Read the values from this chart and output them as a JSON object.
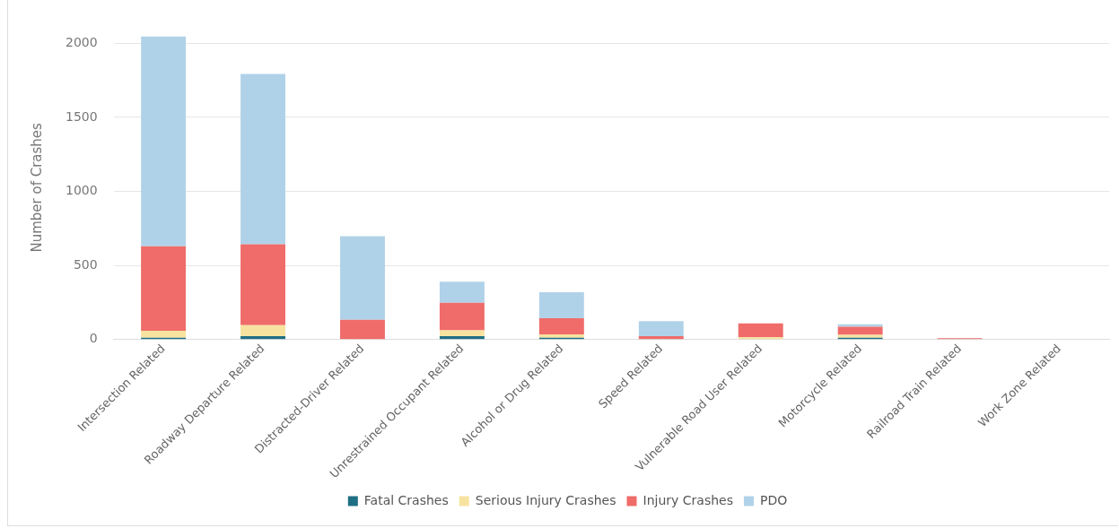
{
  "chart_data": {
    "type": "bar",
    "stacked": true,
    "ylabel": "Number of Crashes",
    "categories": [
      "Intersection Related",
      "Roadway Departure Related",
      "Distracted-Driver Related",
      "Unrestrained Occupant Related",
      "Alcohol or Drug Related",
      "Speed Related",
      "Vulnerable Road User Related",
      "Motorcycle Related",
      "Railroad Train Related",
      "Work Zone Related"
    ],
    "series": [
      {
        "name": "Fatal Crashes",
        "color": "#1f6f84",
        "values": [
          12,
          22,
          null,
          22,
          12,
          null,
          null,
          12,
          0,
          0
        ]
      },
      {
        "name": "Serious Injury Crashes",
        "color": "#f7e39f",
        "values": [
          46,
          74,
          3,
          40,
          22,
          2,
          15,
          19,
          0,
          0
        ]
      },
      {
        "name": "Injury Crashes",
        "color": "#ef6c6a",
        "values": [
          571,
          546,
          130,
          186,
          109,
          20,
          94,
          55,
          8,
          0
        ]
      },
      {
        "name": "PDO",
        "color": "#b0d2e8",
        "values": [
          1416,
          1150,
          564,
          142,
          176,
          102,
          0,
          17,
          0,
          0
        ]
      }
    ],
    "ylim": [
      0,
      2050
    ],
    "yticks": [
      0,
      500,
      1000,
      1500,
      2000
    ],
    "grid": "y",
    "legend": "bottom"
  }
}
